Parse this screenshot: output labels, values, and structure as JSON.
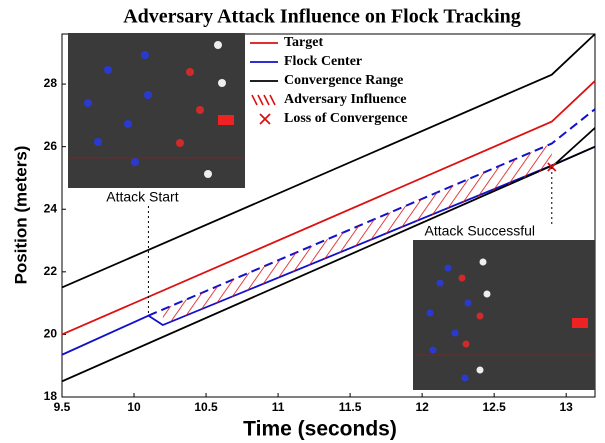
{
  "chart_data": {
    "type": "line",
    "title": "Adversary Attack Influence on Flock Tracking",
    "xlabel": "Time (seconds)",
    "ylabel": "Position (meters)",
    "xlim": [
      9.5,
      13.2
    ],
    "ylim": [
      18,
      29.6
    ],
    "xticks": [
      9.5,
      10,
      10.5,
      11,
      11.5,
      12,
      12.5,
      13
    ],
    "yticks": [
      18,
      20,
      22,
      24,
      26,
      28
    ],
    "series": [
      {
        "name": "Target",
        "color": "#dd1111",
        "style": "line",
        "x": [
          9.5,
          12.9,
          13.2
        ],
        "values": [
          20.0,
          26.8,
          28.1
        ]
      },
      {
        "name": "Flock Center",
        "color": "#1111cc",
        "style": "line",
        "x": [
          9.5,
          10.1,
          10.2,
          12.9,
          13.2
        ],
        "values": [
          19.35,
          20.6,
          20.3,
          25.4,
          26.0
        ]
      },
      {
        "color": "#1111cc",
        "style": "dash",
        "x": [
          10.1,
          12.9,
          13.2
        ],
        "values": [
          20.6,
          26.1,
          27.2
        ]
      },
      {
        "name": "Convergence Range",
        "color": "#000000",
        "style": "line",
        "x": [
          9.5,
          12.9,
          13.2
        ],
        "values": [
          21.5,
          28.3,
          29.6
        ]
      },
      {
        "color": "#000000",
        "style": "line",
        "x": [
          9.5,
          13.2
        ],
        "values": [
          18.5,
          26.0
        ]
      },
      {
        "color": "#000000",
        "style": "line",
        "x": [
          12.9,
          13.2
        ],
        "values": [
          25.35,
          26.6
        ]
      },
      {
        "name": "Adversary Influence",
        "color": "#dd1111",
        "style": "hatch",
        "x": [
          10.2,
          12.9
        ],
        "values": [
          20.8,
          26.1
        ],
        "lower": [
          20.3,
          25.35
        ]
      },
      {
        "name": "Loss of Convergence",
        "color": "#dd1111",
        "style": "cross",
        "x": [
          12.9
        ],
        "values": [
          25.35
        ]
      }
    ],
    "annotations": [
      {
        "text": "Attack Start",
        "x": 10.1,
        "y": 20.6
      },
      {
        "text": "Attack Successful",
        "x": 12.9,
        "y": 25.35
      }
    ]
  }
}
